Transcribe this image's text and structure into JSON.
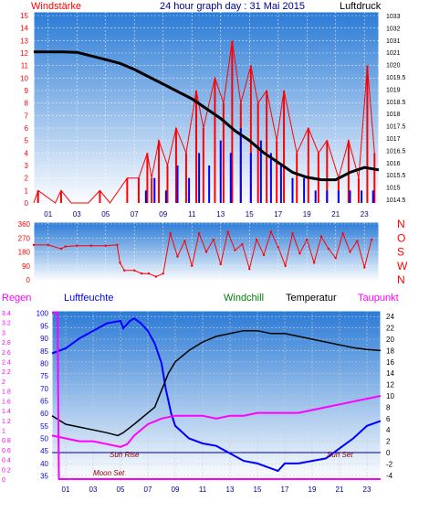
{
  "header": {
    "left_label": "Windstärke",
    "title": "24 hour graph day : 31 Mai 2015",
    "right_label": "Luftdruck"
  },
  "bottom_header": {
    "regen": "Regen",
    "luftfeuchte": "Luftfeuchte",
    "windchill": "Windchill",
    "temperatur": "Temperatur",
    "taupunkt": "Taupunkt"
  },
  "labels": {
    "sun_rise": "Sun Rise",
    "sun_set": "Sun Set",
    "moon_set": "Moon Set"
  },
  "colors": {
    "bg_top": "#2b7bd6",
    "bg_bottom": "#ffffff",
    "frame": "#ffffff",
    "wind": "#ff0000",
    "gust": "#0000ff",
    "pressure": "#000000",
    "temperature": "#000000",
    "humidity": "#0000ff",
    "dewpoint": "#ff00ff",
    "rain": "#ff00ff",
    "left_axis_text": "#ff0000",
    "right_axis_text": "#000000",
    "humidity_axis_text": "#0000ff",
    "rain_axis_text": "#ff00ff",
    "hour_axis_text": "#00008b"
  },
  "chart_data": [
    {
      "type": "line",
      "title": "24 hour graph day : 31 Mai 2015",
      "xlabel": "",
      "xticks": [
        "01",
        "03",
        "05",
        "07",
        "09",
        "11",
        "13",
        "15",
        "17",
        "19",
        "21",
        "23"
      ],
      "xlim": [
        0,
        24
      ],
      "y_left_label": "Windstärke",
      "y_left_ticks": [
        0,
        1,
        2,
        3,
        4,
        5,
        6,
        7,
        8,
        9,
        10,
        11,
        12,
        13,
        14,
        15
      ],
      "ylim_left": [
        0,
        15
      ],
      "y_right_label": "Luftdruck",
      "y_right_ticks": [
        "1014.5",
        "1015",
        "1015.5",
        "1016",
        "1016.5",
        "1017",
        "1017.5",
        "1018",
        "1018.5",
        "1019",
        "1019.5",
        "1020",
        "1021",
        "1031",
        "1032",
        "1033"
      ],
      "series": [
        {
          "name": "Windstärke",
          "axis": "left",
          "x": [
            0,
            0.3,
            1.5,
            1.9,
            2.6,
            3.8,
            4.6,
            5.3,
            6.5,
            7.3,
            7.9,
            8.2,
            8.7,
            9.3,
            9.9,
            10.6,
            11.3,
            11.8,
            12.6,
            13.2,
            13.8,
            14.4,
            15.1,
            15.6,
            16.2,
            16.9,
            17.4,
            18.3,
            19.1,
            19.8,
            20.4,
            21.2,
            21.9,
            22.6,
            23.2,
            23.7
          ],
          "values": [
            0,
            1,
            0,
            1,
            0,
            0,
            1,
            0,
            2,
            2,
            4,
            2,
            5,
            3,
            6,
            4,
            9,
            6,
            10,
            8,
            13,
            8,
            11,
            8,
            9,
            5,
            9,
            4,
            6,
            4,
            5,
            2,
            5,
            2,
            11,
            4
          ]
        },
        {
          "name": "Böen",
          "axis": "left",
          "x": [
            0,
            7,
            7.8,
            8.4,
            9.2,
            10,
            10.8,
            11.5,
            12.2,
            13,
            13.7,
            14.4,
            15.1,
            15.8,
            16.5,
            17.2,
            18,
            18.8,
            19.6,
            20.4,
            21.2,
            22,
            22.8,
            23.6
          ],
          "values": [
            0,
            0,
            1,
            2,
            1,
            3,
            2,
            4,
            3,
            5,
            4,
            6,
            4,
            5,
            4,
            3,
            2,
            2,
            1,
            1,
            1,
            1,
            1,
            1
          ]
        },
        {
          "name": "Luftdruck",
          "axis": "right",
          "x": [
            0,
            1,
            2,
            3,
            4,
            5,
            6,
            7,
            8,
            9,
            10,
            11,
            12,
            13,
            14,
            15,
            16,
            17,
            18,
            19,
            20,
            21,
            22,
            23,
            24
          ],
          "values": [
            1021.3,
            1021.4,
            1021.3,
            1021.0,
            1020.7,
            1020.4,
            1020.1,
            1019.8,
            1019.5,
            1019.2,
            1018.9,
            1018.6,
            1018.2,
            1017.8,
            1017.3,
            1016.9,
            1016.4,
            1016.0,
            1015.6,
            1015.4,
            1015.3,
            1015.3,
            1015.6,
            1015.8,
            1015.7
          ]
        }
      ]
    },
    {
      "type": "scatter",
      "title": "",
      "xticks": [
        "01",
        "03",
        "05",
        "07",
        "09",
        "11",
        "13",
        "15",
        "17",
        "19",
        "21",
        "23"
      ],
      "xlim": [
        0,
        24
      ],
      "y_ticks": [
        0,
        90,
        180,
        270,
        360
      ],
      "ylim": [
        0,
        360
      ],
      "y_right_ticks": [
        "N",
        "W",
        "S",
        "O",
        "N"
      ],
      "series": [
        {
          "name": "Windrichtung",
          "x": [
            0,
            1,
            1.9,
            2.2,
            3,
            4,
            5,
            5.8,
            6,
            6.3,
            7,
            7.5,
            8,
            8.5,
            9,
            9.5,
            10,
            10.5,
            11,
            11.5,
            12,
            12.5,
            13,
            13.5,
            14,
            14.5,
            15,
            15.5,
            16,
            16.5,
            17,
            17.5,
            18,
            18.5,
            19,
            19.5,
            20,
            20.5,
            21,
            21.5,
            22,
            22.5,
            23,
            23.5
          ],
          "values": [
            225,
            225,
            200,
            215,
            220,
            220,
            220,
            225,
            110,
            60,
            60,
            40,
            40,
            20,
            40,
            300,
            150,
            250,
            90,
            300,
            180,
            260,
            100,
            310,
            190,
            230,
            70,
            260,
            160,
            310,
            210,
            90,
            300,
            170,
            260,
            110,
            280,
            200,
            140,
            300,
            180,
            250,
            80,
            260
          ]
        }
      ]
    },
    {
      "type": "line",
      "title": "",
      "xticks": [
        "01",
        "03",
        "05",
        "07",
        "09",
        "11",
        "13",
        "15",
        "17",
        "19",
        "21",
        "23"
      ],
      "xlim": [
        0,
        24
      ],
      "y_humidity_ticks": [
        35,
        40,
        45,
        50,
        55,
        60,
        65,
        70,
        75,
        80,
        85,
        90,
        95,
        100
      ],
      "ylim_humidity": [
        33,
        101
      ],
      "y_rain_ticks": [
        "0",
        "0.2",
        "0.4",
        "0.6",
        "0.8",
        "1",
        "1.2",
        "1.4",
        "1.6",
        "1.8",
        "2",
        "2.2",
        "2.4",
        "2.6",
        "2.8",
        "3",
        "3.2",
        "3.4"
      ],
      "ylim_rain": [
        0,
        3.4
      ],
      "y_temp_ticks": [
        -4,
        -2,
        0,
        2,
        4,
        6,
        8,
        10,
        12,
        14,
        16,
        18,
        20,
        22,
        24
      ],
      "ylim_temp": [
        -5,
        25
      ],
      "series": [
        {
          "name": "Temperatur",
          "axis": "temp",
          "x": [
            0,
            1,
            2,
            3,
            4,
            4.8,
            5.2,
            6,
            7,
            7.5,
            8,
            8.5,
            9,
            10,
            11,
            12,
            13,
            14,
            15,
            16,
            17,
            18,
            19,
            20,
            21,
            22,
            23,
            24
          ],
          "values": [
            6.5,
            5,
            4.5,
            4,
            3.5,
            3,
            3.5,
            5,
            7,
            8,
            11,
            14,
            16,
            18,
            19.5,
            20.5,
            21,
            21.5,
            21.5,
            21,
            21,
            20.5,
            20,
            19.5,
            19,
            18.5,
            18.2,
            18
          ]
        },
        {
          "name": "Luftfeuchte",
          "axis": "humidity",
          "x": [
            0,
            1,
            2,
            3,
            4,
            5,
            5.2,
            5.7,
            6,
            6.5,
            7,
            7.5,
            8,
            8.3,
            8.7,
            9,
            10,
            11,
            12,
            13,
            14,
            15,
            16,
            16.5,
            17,
            18,
            19,
            20,
            21,
            22,
            23,
            24
          ],
          "values": [
            84,
            86,
            90,
            93,
            96,
            97,
            94,
            97,
            98,
            96,
            93,
            88,
            80,
            70,
            60,
            55,
            50,
            48,
            47,
            44,
            41,
            40,
            38,
            37,
            40,
            40,
            41,
            42,
            46,
            50,
            55,
            57
          ]
        },
        {
          "name": "Taupunkt",
          "axis": "temp",
          "x": [
            0,
            1,
            2,
            3,
            4,
            5,
            5.5,
            6,
            7,
            8,
            9,
            10,
            11,
            12,
            13,
            14,
            15,
            16,
            17,
            18,
            19,
            20,
            21,
            22,
            23,
            24
          ],
          "values": [
            3,
            2.5,
            2,
            2,
            1.5,
            1,
            1.5,
            3,
            5,
            6,
            6.5,
            6.5,
            6.5,
            6,
            6.5,
            6.5,
            7,
            7,
            7,
            7,
            7.5,
            8,
            8.5,
            9,
            9.5,
            10
          ]
        },
        {
          "name": "Regen",
          "axis": "rain",
          "x": [
            0,
            0.4,
            0.5,
            24
          ],
          "values": [
            3.4,
            3.4,
            0,
            0
          ]
        }
      ]
    }
  ]
}
